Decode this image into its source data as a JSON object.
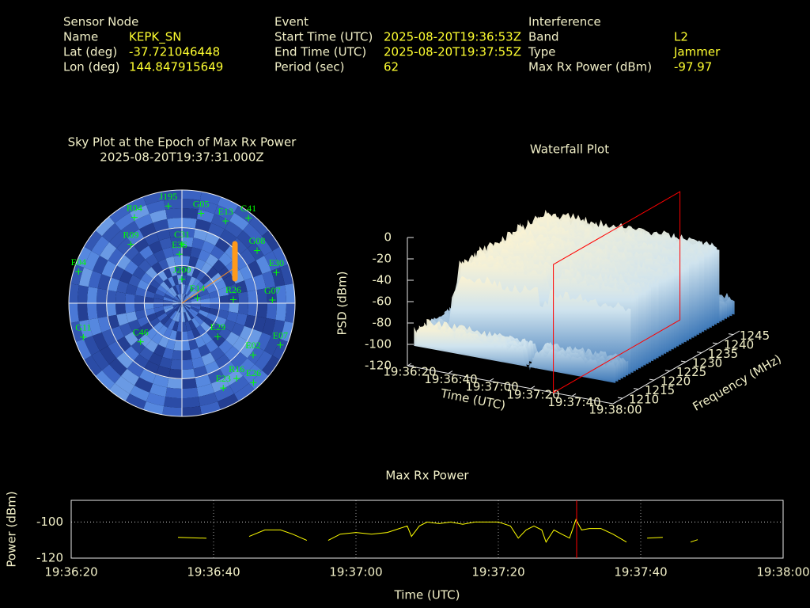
{
  "header": {
    "sensor_node": {
      "title": "Sensor Node",
      "fields": [
        {
          "label": "Name",
          "value": "KEPK_SN"
        },
        {
          "label": "Lat (deg)",
          "value": "-37.721046448"
        },
        {
          "label": "Lon (deg)",
          "value": "144.847915649"
        }
      ]
    },
    "event": {
      "title": "Event",
      "fields": [
        {
          "label": "Start Time (UTC)",
          "value": "2025-08-20T19:36:53Z"
        },
        {
          "label": "End Time (UTC)",
          "value": "2025-08-20T19:37:55Z"
        },
        {
          "label": "Period (sec)",
          "value": "62"
        }
      ]
    },
    "interference": {
      "title": "Interference",
      "fields": [
        {
          "label": "Band",
          "value": "L2"
        },
        {
          "label": "Type",
          "value": "Jammer"
        },
        {
          "label": "Max Rx Power (dBm)",
          "value": "-97.97"
        }
      ]
    }
  },
  "chart_data": [
    {
      "type": "sky",
      "title": [
        "Sky Plot at the Epoch of Max Rx Power",
        "2025-08-20T19:37:31.000Z"
      ],
      "color": "#00ff00",
      "el_rings": [
        0,
        30,
        60
      ],
      "az_lines": [
        0,
        90,
        180,
        270
      ],
      "satellites": [
        {
          "name": "R04",
          "az": 331,
          "el": 12
        },
        {
          "name": "J195",
          "az": 352,
          "el": 12
        },
        {
          "name": "G05",
          "az": 12,
          "el": 17
        },
        {
          "name": "E13",
          "az": 28,
          "el": 16
        },
        {
          "name": "C41",
          "az": 38,
          "el": 4
        },
        {
          "name": "R09",
          "az": 319,
          "el": 28
        },
        {
          "name": "G08",
          "az": 55,
          "el": 17
        },
        {
          "name": "E30",
          "az": 72,
          "el": 11
        },
        {
          "name": "E04",
          "az": 287,
          "el": 4
        },
        {
          "name": "G07",
          "az": 88,
          "el": 18
        },
        {
          "name": "R26",
          "az": 86,
          "el": 49
        },
        {
          "name": "E14",
          "az": 71,
          "el": 77
        },
        {
          "name": "G11",
          "az": 251,
          "el": 7
        },
        {
          "name": "E29",
          "az": 133,
          "el": 51
        },
        {
          "name": "E02",
          "az": 126,
          "el": 20
        },
        {
          "name": "E07",
          "az": 113,
          "el": 5
        },
        {
          "name": "C46",
          "az": 227,
          "el": 45
        },
        {
          "name": "R16",
          "az": 144,
          "el": 16
        },
        {
          "name": "E26",
          "az": 138,
          "el": 5
        },
        {
          "name": "E23",
          "az": 154,
          "el": 15
        },
        {
          "name": "C31",
          "az": 0,
          "el": 43
        },
        {
          "name": "E36",
          "az": 357,
          "el": 51
        },
        {
          "name": "J200",
          "az": 0,
          "el": 71
        }
      ]
    },
    {
      "type": "waterfall",
      "title": "Waterfall Plot",
      "x_label": "Time (UTC)",
      "y_label": "Frequency (MHz)",
      "z_label": "PSD (dBm)",
      "xlim": [
        0,
        100
      ],
      "xticks": [
        {
          "value": 0,
          "label": "19:36:20"
        },
        {
          "value": 20,
          "label": "19:36:40"
        },
        {
          "value": 40,
          "label": "19:37:00"
        },
        {
          "value": 60,
          "label": "19:37:20"
        },
        {
          "value": 80,
          "label": "19:37:40"
        },
        {
          "value": 100,
          "label": "19:38:00"
        }
      ],
      "ylim": [
        1207,
        1247
      ],
      "yticks": [
        1210,
        1215,
        1220,
        1225,
        1230,
        1235,
        1240,
        1245
      ],
      "zlim": [
        -120,
        0
      ],
      "zticks": [
        0,
        -20,
        -40,
        -60,
        -80,
        -100,
        -120
      ],
      "cursor_x": 71,
      "cursor_color": "#ff0000"
    },
    {
      "type": "line",
      "title": "Max Rx Power",
      "x_label": "Time (UTC)",
      "y_label": "Power (dBm)",
      "xlim": [
        0,
        100
      ],
      "xticks": [
        {
          "value": 0,
          "label": "19:36:20"
        },
        {
          "value": 20,
          "label": "19:36:40"
        },
        {
          "value": 40,
          "label": "19:37:00"
        },
        {
          "value": 60,
          "label": "19:37:20"
        },
        {
          "value": 80,
          "label": "19:37:40"
        },
        {
          "value": 100,
          "label": "19:38:00"
        }
      ],
      "ylim": [
        -120,
        -88
      ],
      "yticks": [
        -120,
        -100
      ],
      "grid": true,
      "cursor_x": 71,
      "cursor_color": "#ff0000",
      "x": [
        15,
        19,
        null,
        25,
        27.2,
        29.4,
        31.1,
        33.1,
        null,
        36.1,
        37.8,
        40.0,
        42.2,
        44.4,
        46.1,
        47.2,
        47.8,
        48.9,
        50.0,
        51.7,
        53.3,
        55.0,
        56.7,
        58.3,
        60.0,
        61.7,
        62.8,
        63.9,
        65.0,
        66.1,
        66.7,
        67.8,
        68.9,
        70.0,
        70.9,
        71.7,
        72.8,
        74.4,
        76.1,
        78.0,
        null,
        80.9,
        83.1,
        null,
        87,
        88
      ],
      "series": [
        {
          "color": "#ffff00",
          "values": [
            -108.5,
            -109,
            null,
            -108,
            -104.4,
            -104.4,
            -106.7,
            -110.2,
            null,
            -110.2,
            -106.7,
            -105.8,
            -106.7,
            -105.8,
            -103.6,
            -102.2,
            -108.0,
            -102.2,
            -100.0,
            -100.9,
            -100.0,
            -101.3,
            -100.0,
            -100.0,
            -100.0,
            -102.2,
            -108.9,
            -104.4,
            -102.2,
            -104.4,
            -111.1,
            -104.4,
            -106.7,
            -108.9,
            -98.7,
            -104.4,
            -103.6,
            -103.6,
            -106.7,
            -111.1,
            null,
            -108.9,
            -108.5,
            null,
            -111.1,
            -109.8
          ]
        }
      ]
    }
  ]
}
